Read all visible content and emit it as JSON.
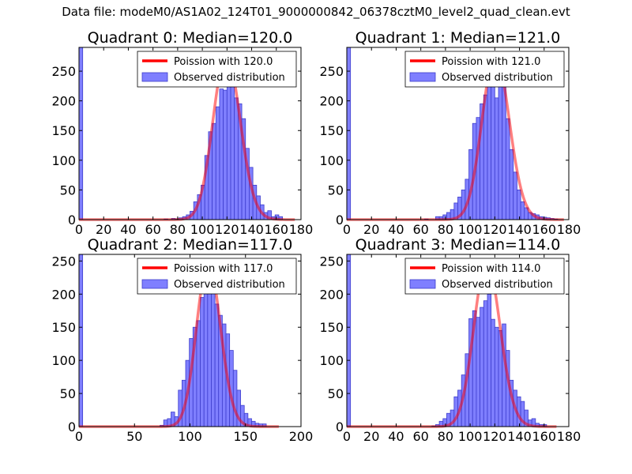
{
  "figure": {
    "title": "Data file: modeM0/AS1A02_124T01_9000000842_06378cztM0_level2_quad_clean.evt"
  },
  "colors": {
    "bar_fill": "#7f7fff",
    "bar_edge": "#3d3dcc",
    "poisson_line": "#ff0000",
    "axes": "#000000"
  },
  "chart_data": [
    {
      "type": "bar",
      "title": "Quadrant 0: Median=120.0",
      "xlim": [
        0,
        180
      ],
      "ylim": [
        0,
        290
      ],
      "xticks": [
        0,
        20,
        40,
        60,
        80,
        100,
        120,
        140,
        160,
        180
      ],
      "yticks": [
        0,
        50,
        100,
        150,
        200,
        250
      ],
      "bin_width": 3,
      "bins_start": [
        0,
        69,
        75,
        78,
        81,
        84,
        87,
        90,
        93,
        96,
        99,
        102,
        105,
        108,
        111,
        114,
        117,
        120,
        123,
        126,
        129,
        132,
        135,
        138,
        141,
        144,
        147,
        150,
        153,
        156,
        159,
        162
      ],
      "counts": [
        290,
        1,
        2,
        1,
        3,
        5,
        8,
        14,
        30,
        42,
        58,
        108,
        148,
        162,
        190,
        220,
        218,
        240,
        268,
        205,
        195,
        170,
        120,
        88,
        58,
        40,
        25,
        12,
        15,
        5,
        8,
        5
      ],
      "poisson_mean": 120.0,
      "poisson_peak": 278,
      "poisson_range": [
        0,
        175
      ],
      "legend": [
        "Poission with 120.0",
        "Observed distribution"
      ]
    },
    {
      "type": "bar",
      "title": "Quadrant 1: Median=121.0",
      "xlim": [
        0,
        180
      ],
      "ylim": [
        0,
        290
      ],
      "xticks": [
        0,
        20,
        40,
        60,
        80,
        100,
        120,
        140,
        160,
        180
      ],
      "yticks": [
        0,
        50,
        100,
        150,
        200,
        250
      ],
      "bin_width": 3,
      "bins_start": [
        0,
        63,
        72,
        75,
        78,
        81,
        84,
        87,
        90,
        93,
        96,
        99,
        102,
        105,
        108,
        111,
        114,
        117,
        120,
        123,
        126,
        129,
        132,
        135,
        138,
        141,
        144,
        147,
        150,
        153,
        156,
        159,
        162,
        165,
        168
      ],
      "counts": [
        290,
        1,
        5,
        5,
        8,
        12,
        17,
        28,
        38,
        50,
        68,
        118,
        162,
        172,
        195,
        210,
        248,
        238,
        205,
        258,
        225,
        170,
        118,
        80,
        50,
        30,
        20,
        12,
        10,
        8,
        5,
        4,
        3,
        2,
        1
      ],
      "poisson_mean": 121.0,
      "poisson_peak": 278,
      "poisson_range": [
        0,
        176
      ],
      "legend": [
        "Poission with 121.0",
        "Observed distribution"
      ]
    },
    {
      "type": "bar",
      "title": "Quadrant 2: Median=117.0",
      "xlim": [
        0,
        200
      ],
      "ylim": [
        0,
        260
      ],
      "xticks": [
        0,
        50,
        100,
        150,
        200
      ],
      "yticks": [
        0,
        50,
        100,
        150,
        200,
        250
      ],
      "bin_width": 3.3,
      "bins_start": [
        0,
        73,
        76.3,
        79.6,
        82.9,
        86.2,
        89.5,
        92.8,
        96.1,
        99.4,
        102.7,
        106,
        109.3,
        112.6,
        115.9,
        119.2,
        122.5,
        125.8,
        129.1,
        132.4,
        135.7,
        139,
        142.3,
        145.6,
        148.9,
        152.2,
        155.5,
        158.8,
        162.1,
        165.4
      ],
      "counts": [
        260,
        2,
        10,
        12,
        22,
        15,
        55,
        70,
        100,
        133,
        150,
        160,
        195,
        205,
        245,
        232,
        185,
        168,
        155,
        140,
        115,
        85,
        55,
        32,
        20,
        12,
        8,
        5,
        4,
        4
      ],
      "poisson_mean": 117.0,
      "poisson_peak": 248,
      "poisson_range": [
        0,
        180
      ],
      "legend": [
        "Poission with 117.0",
        "Observed distribution"
      ]
    },
    {
      "type": "bar",
      "title": "Quadrant 3: Median=114.0",
      "xlim": [
        0,
        180
      ],
      "ylim": [
        0,
        260
      ],
      "xticks": [
        0,
        20,
        40,
        60,
        80,
        100,
        120,
        140,
        160,
        180
      ],
      "yticks": [
        0,
        50,
        100,
        150,
        200,
        250
      ],
      "bin_width": 3,
      "bins_start": [
        0,
        69,
        72,
        75,
        78,
        81,
        84,
        87,
        90,
        93,
        96,
        99,
        102,
        105,
        108,
        111,
        114,
        117,
        120,
        123,
        126,
        129,
        132,
        135,
        138,
        141,
        144,
        147,
        150,
        153,
        156,
        159
      ],
      "counts": [
        260,
        1,
        3,
        8,
        12,
        20,
        25,
        45,
        55,
        78,
        110,
        163,
        175,
        165,
        180,
        190,
        200,
        162,
        150,
        145,
        155,
        115,
        70,
        55,
        45,
        38,
        25,
        10,
        12,
        5,
        3,
        3
      ],
      "poisson_mean": 114.0,
      "poisson_peak": 248,
      "poisson_range": [
        0,
        170
      ],
      "legend": [
        "Poission with 114.0",
        "Observed distribution"
      ]
    }
  ]
}
